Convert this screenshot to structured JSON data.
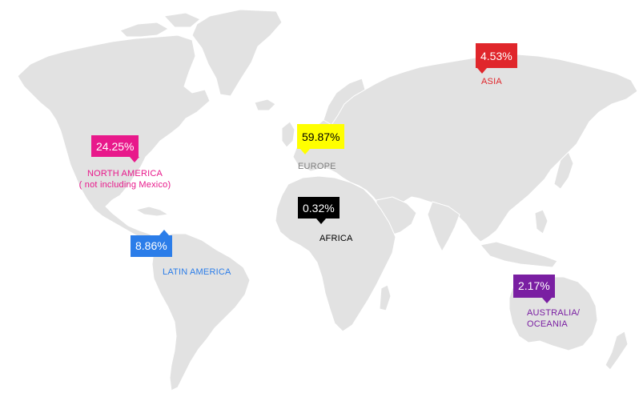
{
  "regions": {
    "north_america": {
      "value": "24.25%",
      "label": "NORTH AMERICA",
      "sublabel": "( not including Mexico)",
      "color": "#e8198b",
      "text_color": "#ffffff",
      "share": 24.25
    },
    "europe": {
      "value": "59.87%",
      "label": "EUROPE",
      "color": "#ffff00",
      "text_color": "#000000",
      "label_color": "#7f7f7f",
      "share": 59.87
    },
    "asia": {
      "value": "4.53%",
      "label": "ASIA",
      "color": "#e0262b",
      "text_color": "#ffffff",
      "share": 4.53
    },
    "africa": {
      "value": "0.32%",
      "label": "AFRICA",
      "color": "#000000",
      "text_color": "#ffffff",
      "label_color": "#000000",
      "share": 0.32
    },
    "latin_america": {
      "value": "8.86%",
      "label": "LATIN AMERICA",
      "color": "#2b7de9",
      "text_color": "#ffffff",
      "share": 8.86
    },
    "oceania": {
      "value": "2.17%",
      "label_line1": "AUSTRALIA/",
      "label_line2": "OCEANIA",
      "color": "#7a1fa2",
      "text_color": "#ffffff",
      "share": 2.17
    }
  },
  "colors": {
    "land": "#e2e2e2",
    "background": "#ffffff"
  }
}
